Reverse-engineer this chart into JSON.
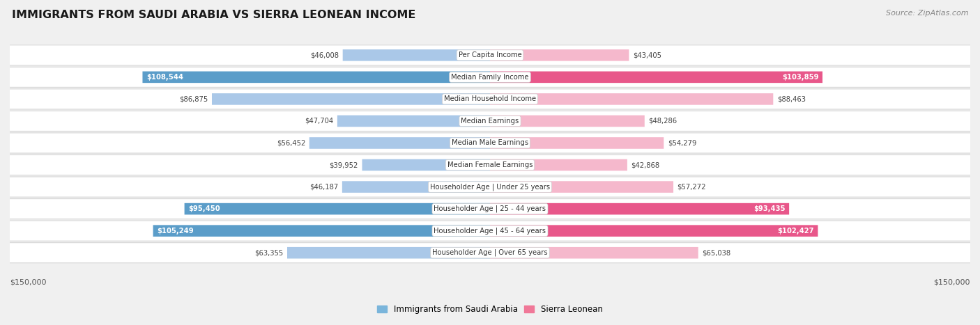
{
  "title": "IMMIGRANTS FROM SAUDI ARABIA VS SIERRA LEONEAN INCOME",
  "source": "Source: ZipAtlas.com",
  "categories": [
    "Per Capita Income",
    "Median Family Income",
    "Median Household Income",
    "Median Earnings",
    "Median Male Earnings",
    "Median Female Earnings",
    "Householder Age | Under 25 years",
    "Householder Age | 25 - 44 years",
    "Householder Age | 45 - 64 years",
    "Householder Age | Over 65 years"
  ],
  "saudi_values": [
    46008,
    108544,
    86875,
    47704,
    56452,
    39952,
    46187,
    95450,
    105249,
    63355
  ],
  "sierra_values": [
    43405,
    103859,
    88463,
    48286,
    54279,
    42868,
    57272,
    93435,
    102427,
    65038
  ],
  "saudi_labels": [
    "$46,008",
    "$108,544",
    "$86,875",
    "$47,704",
    "$56,452",
    "$39,952",
    "$46,187",
    "$95,450",
    "$105,249",
    "$63,355"
  ],
  "sierra_labels": [
    "$43,405",
    "$103,859",
    "$88,463",
    "$48,286",
    "$54,279",
    "$42,868",
    "$57,272",
    "$93,435",
    "$102,427",
    "$65,038"
  ],
  "saudi_color_light": "#aac8e8",
  "saudi_color_dark": "#5b9dc9",
  "sierra_color_light": "#f5b8cc",
  "sierra_color_dark": "#e8578a",
  "max_value": 150000,
  "background_color": "#f0f0f0",
  "row_bg_color": "#ffffff",
  "row_border_color": "#d8d8d8",
  "legend_saudi_color": "#7ab5db",
  "legend_sierra_color": "#f07898",
  "saudi_threshold": 90000,
  "sierra_threshold": 90000,
  "label_color_dark": "#444444",
  "label_color_white": "#ffffff"
}
